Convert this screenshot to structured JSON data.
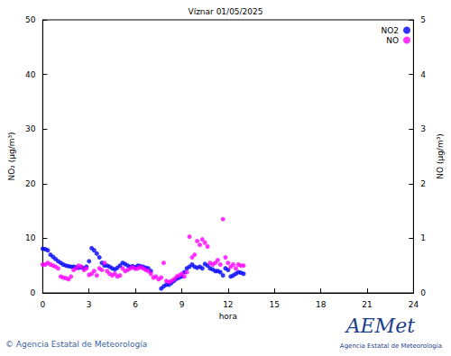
{
  "chart_data": {
    "type": "scatter",
    "title": "Víznar 01/05/2025",
    "x_label": "hora",
    "y_label": "NO₂ (µg/m³)",
    "y2_label": "NO (µg/m³)",
    "footer": "© Agencia Estatal de Meteorología",
    "logo": "AEMet",
    "logo_subtitle": "Agencia Estatal de Meteorología",
    "legend": "upper right",
    "grid": false,
    "marker": "circle",
    "xlim": [
      0,
      24
    ],
    "xticks": [
      0,
      3,
      6,
      9,
      12,
      15,
      18,
      21,
      24
    ],
    "ylim": [
      0,
      50
    ],
    "yticks": [
      0,
      10,
      20,
      30,
      40,
      50
    ],
    "y2lim": [
      0,
      5
    ],
    "y2ticks": [
      0,
      1,
      2,
      3,
      4,
      5
    ],
    "x": [
      0,
      0.17,
      0.33,
      0.5,
      0.67,
      0.83,
      1,
      1.17,
      1.33,
      1.5,
      1.67,
      1.83,
      2,
      2.17,
      2.33,
      2.5,
      2.67,
      2.83,
      3,
      3.17,
      3.33,
      3.5,
      3.67,
      3.83,
      4,
      4.17,
      4.33,
      4.5,
      4.67,
      4.83,
      5,
      5.17,
      5.33,
      5.5,
      5.67,
      5.83,
      6,
      6.17,
      6.33,
      6.5,
      6.67,
      6.83,
      7,
      7.17,
      7.33,
      7.5,
      7.67,
      7.83,
      8,
      8.17,
      8.33,
      8.5,
      8.67,
      8.83,
      9,
      9.17,
      9.33,
      9.5,
      9.67,
      9.83,
      10,
      10.17,
      10.33,
      10.5,
      10.67,
      10.83,
      11,
      11.17,
      11.33,
      11.5,
      11.67,
      11.83,
      12,
      12.17,
      12.33,
      12.5,
      12.67,
      12.83,
      13
    ],
    "series": [
      {
        "name": "NO2",
        "color": "#0000ff",
        "marker": "circle",
        "axis": "y",
        "values": [
          8.1,
          8.0,
          7.8,
          7.0,
          6.6,
          6.2,
          5.8,
          5.5,
          5.2,
          5.0,
          4.9,
          4.8,
          4.8,
          4.7,
          4.6,
          4.7,
          4.5,
          4.8,
          5.8,
          8.2,
          7.8,
          7.2,
          6.5,
          5.5,
          5.0,
          5.0,
          4.8,
          4.5,
          4.3,
          4.6,
          5.0,
          5.5,
          5.3,
          5.0,
          4.8,
          4.9,
          4.7,
          5.0,
          4.9,
          4.8,
          4.6,
          4.5,
          4.0,
          null,
          null,
          null,
          0.8,
          1.2,
          1.5,
          1.5,
          1.8,
          2.2,
          2.6,
          2.8,
          3.0,
          3.8,
          4.5,
          4.8,
          5.2,
          4.8,
          4.6,
          4.8,
          4.5,
          5.3,
          5.0,
          4.5,
          4.3,
          4.0,
          4.0,
          3.8,
          3.2,
          4.5,
          4.2,
          3.0,
          3.2,
          3.5,
          3.8,
          3.7,
          3.5
        ]
      },
      {
        "name": "NO",
        "color": "#ff00ff",
        "marker": "circle",
        "axis": "y2",
        "values": [
          0.52,
          0.52,
          0.55,
          0.52,
          0.5,
          0.48,
          0.45,
          0.3,
          0.28,
          0.27,
          0.25,
          0.3,
          0.42,
          0.45,
          0.5,
          0.48,
          0.42,
          0.45,
          0.33,
          0.35,
          0.4,
          0.32,
          0.45,
          0.42,
          0.55,
          0.4,
          0.35,
          0.32,
          0.35,
          0.3,
          0.32,
          0.45,
          0.4,
          0.42,
          0.45,
          0.47,
          0.44,
          0.45,
          0.47,
          0.45,
          0.42,
          0.4,
          0.35,
          0.28,
          0.3,
          0.25,
          0.28,
          0.55,
          0.22,
          0.2,
          0.22,
          0.25,
          0.3,
          0.32,
          0.35,
          0.3,
          0.38,
          1.03,
          0.65,
          0.7,
          0.95,
          0.88,
          0.98,
          0.92,
          0.85,
          0.55,
          0.52,
          0.55,
          0.6,
          0.52,
          1.35,
          0.65,
          0.55,
          0.48,
          0.52,
          0.45,
          0.52,
          0.5,
          0.5
        ]
      }
    ]
  }
}
